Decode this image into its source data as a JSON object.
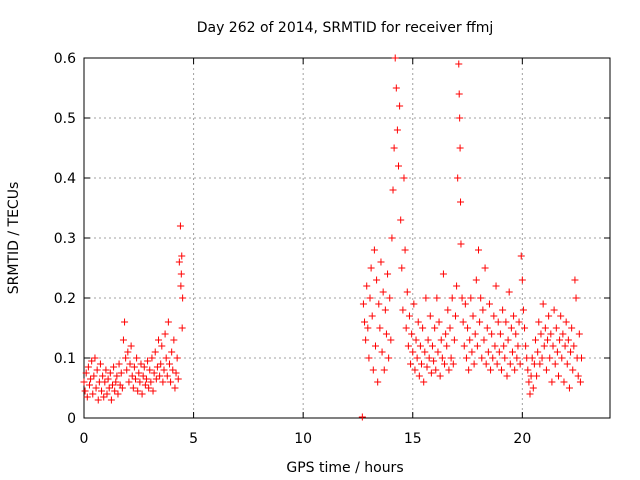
{
  "chart_data": {
    "type": "scatter",
    "title": "Day 262 of 2014, SRMTID for receiver ffmj",
    "xlabel": "GPS time / hours",
    "ylabel": "SRMTID / TECUs",
    "xlim": [
      0,
      24
    ],
    "ylim": [
      0,
      0.6
    ],
    "x_ticks": [
      0,
      5,
      10,
      15,
      20
    ],
    "x_tick_labels": [
      "0",
      "5",
      "10",
      "15",
      "20"
    ],
    "y_ticks": [
      0,
      0.1,
      0.2,
      0.3,
      0.4,
      0.5,
      0.6
    ],
    "y_tick_labels": [
      "0",
      "0.1",
      "0.2",
      "0.3",
      "0.4",
      "0.5",
      "0.6"
    ],
    "grid": true,
    "marker": "plus",
    "marker_color": "#ff0000",
    "series": [
      {
        "name": "SRMTID",
        "points": [
          [
            0.0,
            0.06
          ],
          [
            0.05,
            0.045
          ],
          [
            0.1,
            0.075
          ],
          [
            0.15,
            0.035
          ],
          [
            0.2,
            0.085
          ],
          [
            0.25,
            0.055
          ],
          [
            0.3,
            0.065
          ],
          [
            0.35,
            0.095
          ],
          [
            0.4,
            0.04
          ],
          [
            0.45,
            0.07
          ],
          [
            0.5,
            0.1
          ],
          [
            0.55,
            0.05
          ],
          [
            0.6,
            0.08
          ],
          [
            0.65,
            0.03
          ],
          [
            0.7,
            0.06
          ],
          [
            0.75,
            0.09
          ],
          [
            0.8,
            0.045
          ],
          [
            0.85,
            0.07
          ],
          [
            0.9,
            0.035
          ],
          [
            0.95,
            0.06
          ],
          [
            1.0,
            0.08
          ],
          [
            1.05,
            0.04
          ],
          [
            1.1,
            0.065
          ],
          [
            1.15,
            0.05
          ],
          [
            1.2,
            0.075
          ],
          [
            1.25,
            0.03
          ],
          [
            1.3,
            0.055
          ],
          [
            1.35,
            0.085
          ],
          [
            1.4,
            0.045
          ],
          [
            1.45,
            0.06
          ],
          [
            1.5,
            0.07
          ],
          [
            1.55,
            0.04
          ],
          [
            1.6,
            0.09
          ],
          [
            1.65,
            0.055
          ],
          [
            1.7,
            0.075
          ],
          [
            1.75,
            0.05
          ],
          [
            1.8,
            0.13
          ],
          [
            1.85,
            0.16
          ],
          [
            1.9,
            0.1
          ],
          [
            1.95,
            0.08
          ],
          [
            2.0,
            0.11
          ],
          [
            2.05,
            0.06
          ],
          [
            2.1,
            0.09
          ],
          [
            2.15,
            0.12
          ],
          [
            2.2,
            0.07
          ],
          [
            2.25,
            0.05
          ],
          [
            2.3,
            0.085
          ],
          [
            2.35,
            0.065
          ],
          [
            2.4,
            0.1
          ],
          [
            2.45,
            0.045
          ],
          [
            2.5,
            0.075
          ],
          [
            2.55,
            0.06
          ],
          [
            2.6,
            0.09
          ],
          [
            2.65,
            0.04
          ],
          [
            2.7,
            0.07
          ],
          [
            2.75,
            0.085
          ],
          [
            2.8,
            0.055
          ],
          [
            2.85,
            0.065
          ],
          [
            2.9,
            0.095
          ],
          [
            2.95,
            0.05
          ],
          [
            3.0,
            0.08
          ],
          [
            3.05,
            0.06
          ],
          [
            3.1,
            0.1
          ],
          [
            3.15,
            0.045
          ],
          [
            3.2,
            0.075
          ],
          [
            3.25,
            0.11
          ],
          [
            3.3,
            0.065
          ],
          [
            3.35,
            0.085
          ],
          [
            3.4,
            0.13
          ],
          [
            3.45,
            0.07
          ],
          [
            3.5,
            0.09
          ],
          [
            3.55,
            0.12
          ],
          [
            3.6,
            0.06
          ],
          [
            3.65,
            0.08
          ],
          [
            3.7,
            0.14
          ],
          [
            3.75,
            0.1
          ],
          [
            3.8,
            0.07
          ],
          [
            3.85,
            0.16
          ],
          [
            3.9,
            0.09
          ],
          [
            3.95,
            0.06
          ],
          [
            4.0,
            0.11
          ],
          [
            4.05,
            0.08
          ],
          [
            4.1,
            0.13
          ],
          [
            4.15,
            0.05
          ],
          [
            4.2,
            0.075
          ],
          [
            4.25,
            0.1
          ],
          [
            4.3,
            0.065
          ],
          [
            4.35,
            0.26
          ],
          [
            4.4,
            0.32
          ],
          [
            4.42,
            0.22
          ],
          [
            4.44,
            0.24
          ],
          [
            4.46,
            0.27
          ],
          [
            4.48,
            0.15
          ],
          [
            4.5,
            0.2
          ],
          [
            12.7,
            0.0
          ],
          [
            12.75,
            0.19
          ],
          [
            12.8,
            0.16
          ],
          [
            12.85,
            0.13
          ],
          [
            12.9,
            0.22
          ],
          [
            12.95,
            0.15
          ],
          [
            13.0,
            0.1
          ],
          [
            13.05,
            0.2
          ],
          [
            13.1,
            0.25
          ],
          [
            13.15,
            0.17
          ],
          [
            13.2,
            0.08
          ],
          [
            13.25,
            0.28
          ],
          [
            13.3,
            0.12
          ],
          [
            13.35,
            0.23
          ],
          [
            13.4,
            0.06
          ],
          [
            13.45,
            0.19
          ],
          [
            13.5,
            0.15
          ],
          [
            13.55,
            0.26
          ],
          [
            13.6,
            0.11
          ],
          [
            13.65,
            0.21
          ],
          [
            13.7,
            0.08
          ],
          [
            13.75,
            0.18
          ],
          [
            13.8,
            0.14
          ],
          [
            13.85,
            0.24
          ],
          [
            13.9,
            0.1
          ],
          [
            13.95,
            0.2
          ],
          [
            14.0,
            0.13
          ],
          [
            14.05,
            0.3
          ],
          [
            14.1,
            0.38
          ],
          [
            14.15,
            0.45
          ],
          [
            14.2,
            0.6
          ],
          [
            14.25,
            0.55
          ],
          [
            14.3,
            0.48
          ],
          [
            14.35,
            0.42
          ],
          [
            14.4,
            0.52
          ],
          [
            14.45,
            0.33
          ],
          [
            14.5,
            0.25
          ],
          [
            14.55,
            0.18
          ],
          [
            14.6,
            0.4
          ],
          [
            14.65,
            0.28
          ],
          [
            14.7,
            0.15
          ],
          [
            14.75,
            0.21
          ],
          [
            14.8,
            0.12
          ],
          [
            14.85,
            0.17
          ],
          [
            14.9,
            0.09
          ],
          [
            14.95,
            0.14
          ],
          [
            15.0,
            0.11
          ],
          [
            15.05,
            0.19
          ],
          [
            15.1,
            0.08
          ],
          [
            15.15,
            0.13
          ],
          [
            15.2,
            0.1
          ],
          [
            15.25,
            0.16
          ],
          [
            15.3,
            0.07
          ],
          [
            15.35,
            0.12
          ],
          [
            15.4,
            0.09
          ],
          [
            15.45,
            0.15
          ],
          [
            15.5,
            0.06
          ],
          [
            15.55,
            0.11
          ],
          [
            15.6,
            0.2
          ],
          [
            15.65,
            0.085
          ],
          [
            15.7,
            0.13
          ],
          [
            15.75,
            0.1
          ],
          [
            15.8,
            0.17
          ],
          [
            15.85,
            0.075
          ],
          [
            15.9,
            0.12
          ],
          [
            15.95,
            0.095
          ],
          [
            16.0,
            0.15
          ],
          [
            16.05,
            0.08
          ],
          [
            16.1,
            0.2
          ],
          [
            16.15,
            0.11
          ],
          [
            16.2,
            0.16
          ],
          [
            16.25,
            0.07
          ],
          [
            16.3,
            0.13
          ],
          [
            16.35,
            0.1
          ],
          [
            16.4,
            0.24
          ],
          [
            16.45,
            0.09
          ],
          [
            16.5,
            0.14
          ],
          [
            16.55,
            0.12
          ],
          [
            16.6,
            0.18
          ],
          [
            16.65,
            0.08
          ],
          [
            16.7,
            0.15
          ],
          [
            16.75,
            0.1
          ],
          [
            16.8,
            0.2
          ],
          [
            16.85,
            0.09
          ],
          [
            16.9,
            0.13
          ],
          [
            16.95,
            0.17
          ],
          [
            17.0,
            0.22
          ],
          [
            17.05,
            0.4
          ],
          [
            17.1,
            0.59
          ],
          [
            17.12,
            0.54
          ],
          [
            17.14,
            0.5
          ],
          [
            17.16,
            0.45
          ],
          [
            17.18,
            0.36
          ],
          [
            17.2,
            0.29
          ],
          [
            17.25,
            0.2
          ],
          [
            17.3,
            0.16
          ],
          [
            17.35,
            0.12
          ],
          [
            17.4,
            0.19
          ],
          [
            17.45,
            0.1
          ],
          [
            17.5,
            0.15
          ],
          [
            17.55,
            0.08
          ],
          [
            17.6,
            0.13
          ],
          [
            17.65,
            0.2
          ],
          [
            17.7,
            0.11
          ],
          [
            17.75,
            0.17
          ],
          [
            17.8,
            0.09
          ],
          [
            17.85,
            0.14
          ],
          [
            17.9,
            0.23
          ],
          [
            17.95,
            0.12
          ],
          [
            18.0,
            0.28
          ],
          [
            18.05,
            0.16
          ],
          [
            18.1,
            0.2
          ],
          [
            18.15,
            0.1
          ],
          [
            18.2,
            0.18
          ],
          [
            18.25,
            0.13
          ],
          [
            18.3,
            0.25
          ],
          [
            18.35,
            0.09
          ],
          [
            18.4,
            0.15
          ],
          [
            18.45,
            0.11
          ],
          [
            18.5,
            0.19
          ],
          [
            18.55,
            0.08
          ],
          [
            18.6,
            0.14
          ],
          [
            18.65,
            0.1
          ],
          [
            18.7,
            0.17
          ],
          [
            18.75,
            0.12
          ],
          [
            18.8,
            0.22
          ],
          [
            18.85,
            0.09
          ],
          [
            18.9,
            0.16
          ],
          [
            18.95,
            0.11
          ],
          [
            19.0,
            0.14
          ],
          [
            19.05,
            0.08
          ],
          [
            19.1,
            0.18
          ],
          [
            19.15,
            0.12
          ],
          [
            19.2,
            0.1
          ],
          [
            19.25,
            0.16
          ],
          [
            19.3,
            0.07
          ],
          [
            19.35,
            0.13
          ],
          [
            19.4,
            0.21
          ],
          [
            19.45,
            0.09
          ],
          [
            19.5,
            0.15
          ],
          [
            19.55,
            0.11
          ],
          [
            19.6,
            0.17
          ],
          [
            19.65,
            0.08
          ],
          [
            19.7,
            0.14
          ],
          [
            19.75,
            0.1
          ],
          [
            19.8,
            0.12
          ],
          [
            19.85,
            0.16
          ],
          [
            19.9,
            0.09
          ],
          [
            19.95,
            0.27
          ],
          [
            20.0,
            0.23
          ],
          [
            20.05,
            0.18
          ],
          [
            20.1,
            0.15
          ],
          [
            20.15,
            0.12
          ],
          [
            20.2,
            0.1
          ],
          [
            20.25,
            0.08
          ],
          [
            20.3,
            0.06
          ],
          [
            20.35,
            0.04
          ],
          [
            20.4,
            0.07
          ],
          [
            20.45,
            0.1
          ],
          [
            20.5,
            0.05
          ],
          [
            20.55,
            0.09
          ],
          [
            20.6,
            0.13
          ],
          [
            20.65,
            0.07
          ],
          [
            20.7,
            0.11
          ],
          [
            20.75,
            0.16
          ],
          [
            20.8,
            0.09
          ],
          [
            20.85,
            0.14
          ],
          [
            20.9,
            0.1
          ],
          [
            20.95,
            0.19
          ],
          [
            21.0,
            0.12
          ],
          [
            21.05,
            0.15
          ],
          [
            21.1,
            0.08
          ],
          [
            21.15,
            0.13
          ],
          [
            21.2,
            0.17
          ],
          [
            21.25,
            0.1
          ],
          [
            21.3,
            0.14
          ],
          [
            21.35,
            0.06
          ],
          [
            21.4,
            0.12
          ],
          [
            21.45,
            0.18
          ],
          [
            21.5,
            0.09
          ],
          [
            21.55,
            0.15
          ],
          [
            21.6,
            0.11
          ],
          [
            21.65,
            0.07
          ],
          [
            21.7,
            0.13
          ],
          [
            21.75,
            0.17
          ],
          [
            21.8,
            0.1
          ],
          [
            21.85,
            0.14
          ],
          [
            21.9,
            0.06
          ],
          [
            21.95,
            0.12
          ],
          [
            22.0,
            0.16
          ],
          [
            22.05,
            0.09
          ],
          [
            22.1,
            0.13
          ],
          [
            22.15,
            0.05
          ],
          [
            22.2,
            0.11
          ],
          [
            22.25,
            0.15
          ],
          [
            22.3,
            0.08
          ],
          [
            22.35,
            0.12
          ],
          [
            22.4,
            0.23
          ],
          [
            22.45,
            0.2
          ],
          [
            22.5,
            0.1
          ],
          [
            22.55,
            0.07
          ],
          [
            22.6,
            0.14
          ],
          [
            22.65,
            0.06
          ],
          [
            22.7,
            0.1
          ]
        ]
      }
    ]
  }
}
